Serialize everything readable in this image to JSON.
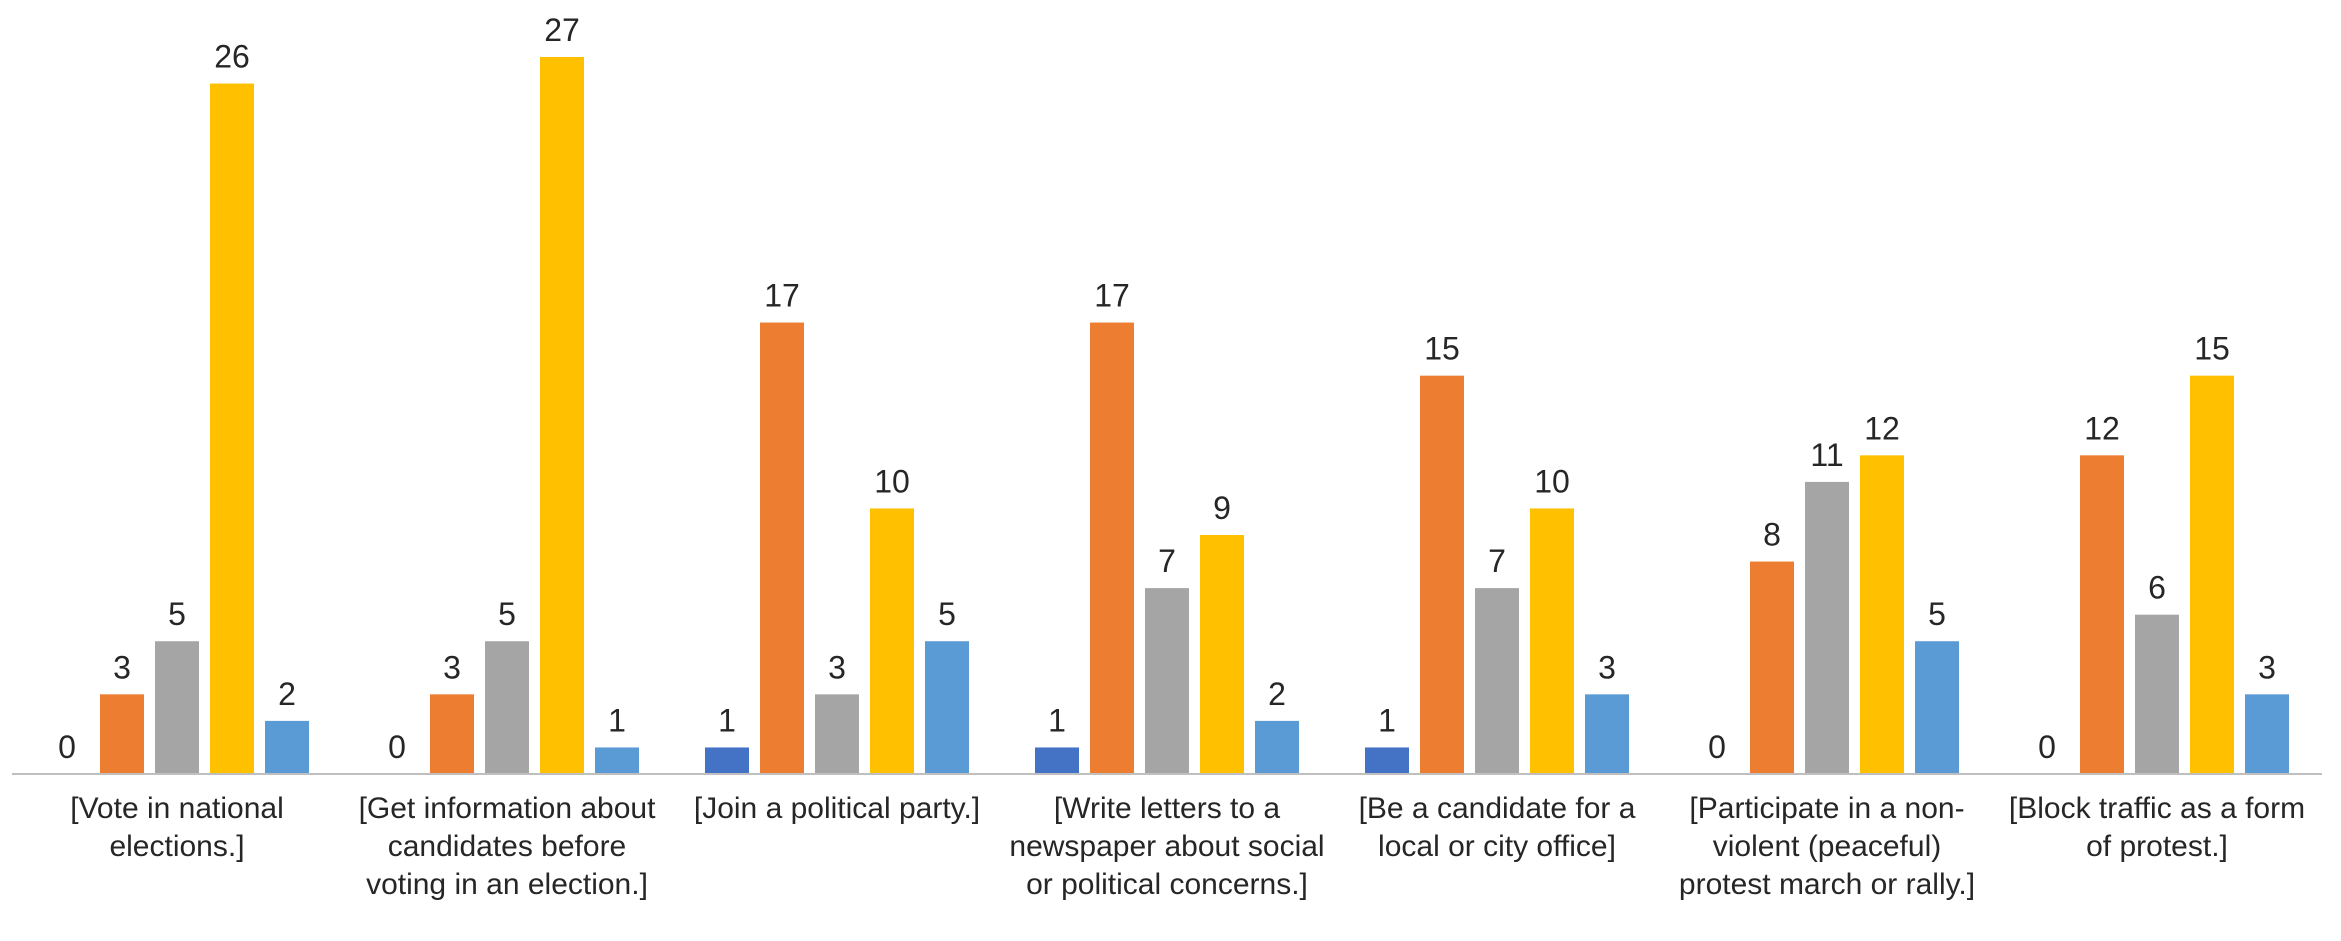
{
  "chart_data": {
    "type": "bar",
    "categories": [
      "[Vote in national elections.]",
      "[Get information about candidates before voting in an election.]",
      "[Join a political party.]",
      "[Write letters to a newspaper about social or political concerns.]",
      "[Be a candidate for a local or city office]",
      "[Participate in a non-violent (peaceful) protest march or rally.]",
      "[Block traffic as a form of protest.]"
    ],
    "series": [
      {
        "color": "#4472c4",
        "values": [
          0,
          0,
          1,
          1,
          1,
          0,
          0
        ]
      },
      {
        "color": "#ed7d31",
        "values": [
          3,
          3,
          17,
          17,
          15,
          8,
          12
        ]
      },
      {
        "color": "#a5a5a5",
        "values": [
          5,
          5,
          3,
          7,
          7,
          11,
          6
        ]
      },
      {
        "color": "#ffc000",
        "values": [
          26,
          27,
          10,
          9,
          10,
          12,
          15
        ]
      },
      {
        "color": "#5b9bd5",
        "values": [
          2,
          1,
          5,
          2,
          3,
          5,
          3
        ]
      }
    ]
  }
}
